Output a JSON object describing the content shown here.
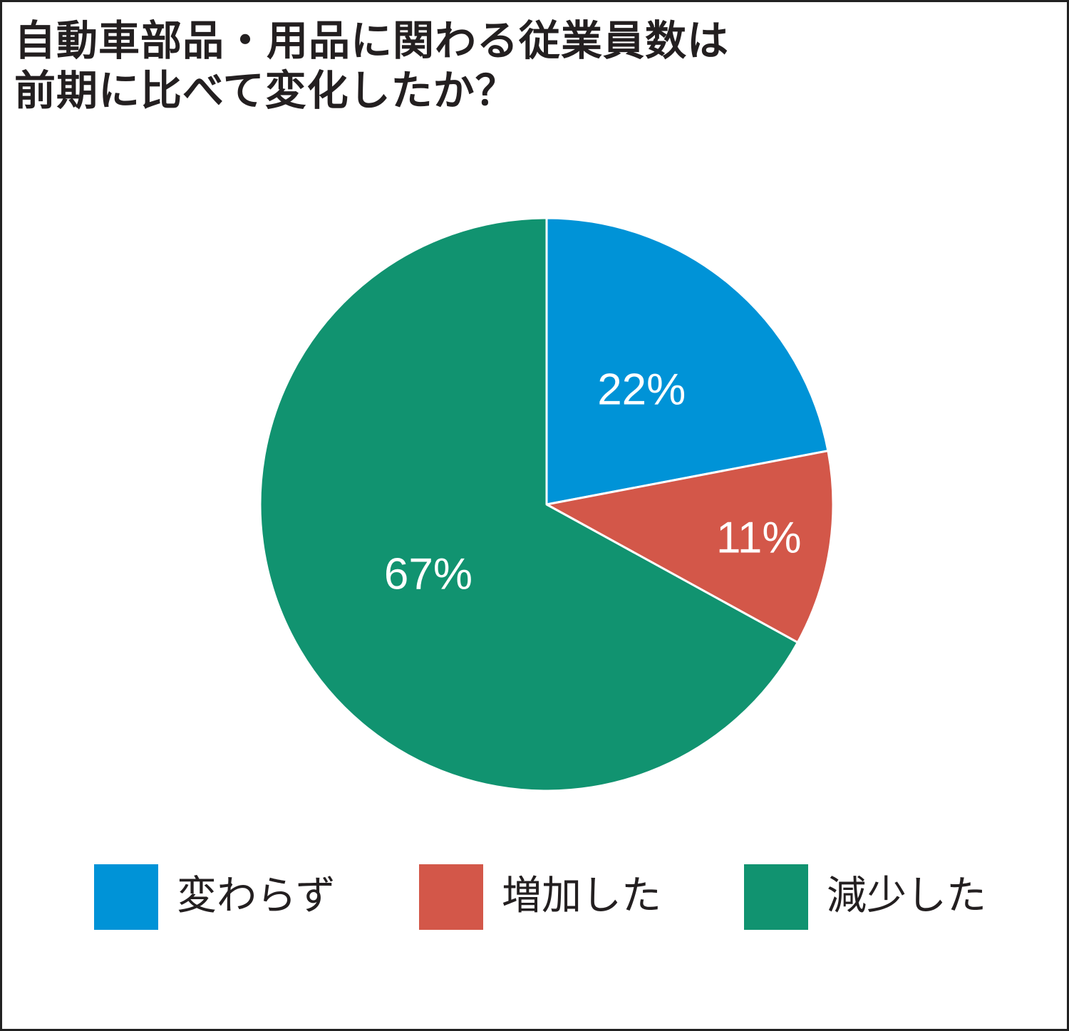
{
  "title": {
    "line1": "自動車部品・用品に関わる従業員数は",
    "line2": "前期に比べて変化したか？"
  },
  "chart_data": {
    "type": "pie",
    "title": "自動車部品・用品に関わる従業員数は前期に比べて変化したか？",
    "start_angle_deg": 0,
    "direction": "clockwise",
    "slices": [
      {
        "label": "変わらず",
        "value": 22,
        "display": "22%",
        "color": "#0093d7"
      },
      {
        "label": "増加した",
        "value": 11,
        "display": "11%",
        "color": "#d35749"
      },
      {
        "label": "減少した",
        "value": 67,
        "display": "67%",
        "color": "#119370"
      }
    ],
    "legend_position": "bottom"
  },
  "legend": {
    "items": [
      {
        "label": "変わらず",
        "color": "#0093d7"
      },
      {
        "label": "増加した",
        "color": "#d35749"
      },
      {
        "label": "減少した",
        "color": "#119370"
      }
    ]
  }
}
